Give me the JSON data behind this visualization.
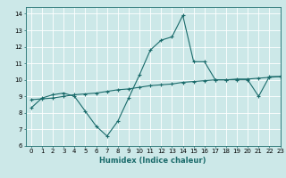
{
  "title": "",
  "xlabel": "Humidex (Indice chaleur)",
  "ylabel": "",
  "bg_color": "#cce8e8",
  "grid_color": "#ffffff",
  "line_color": "#1a6b6b",
  "xlim": [
    -0.5,
    23
  ],
  "ylim": [
    6,
    14.4
  ],
  "yticks": [
    6,
    7,
    8,
    9,
    10,
    11,
    12,
    13,
    14
  ],
  "ytick_labels": [
    "6",
    "7",
    "8",
    "9",
    "10",
    "11",
    "12",
    "13",
    "14"
  ],
  "xticks": [
    0,
    1,
    2,
    3,
    4,
    5,
    6,
    7,
    8,
    9,
    10,
    11,
    12,
    13,
    14,
    15,
    16,
    17,
    18,
    19,
    20,
    21,
    22,
    23
  ],
  "xtick_labels": [
    "0",
    "1",
    "2",
    "3",
    "4",
    "5",
    "6",
    "7",
    "8",
    "9",
    "10",
    "11",
    "12",
    "13",
    "14",
    "15",
    "16",
    "17",
    "18",
    "19",
    "20",
    "21",
    "22",
    "23"
  ],
  "series1_x": [
    0,
    1,
    2,
    3,
    4,
    5,
    6,
    7,
    8,
    9,
    10,
    11,
    12,
    13,
    14,
    15,
    16,
    17,
    18,
    19,
    20,
    21,
    22,
    23
  ],
  "series1_y": [
    8.3,
    8.9,
    9.1,
    9.2,
    9.0,
    8.1,
    7.2,
    6.6,
    7.5,
    8.9,
    10.3,
    11.8,
    12.4,
    12.6,
    13.9,
    11.1,
    11.1,
    10.0,
    10.0,
    10.0,
    10.0,
    9.0,
    10.2,
    10.2
  ],
  "series2_x": [
    0,
    1,
    2,
    3,
    4,
    5,
    6,
    7,
    8,
    9,
    10,
    11,
    12,
    13,
    14,
    15,
    16,
    17,
    18,
    19,
    20,
    21,
    22,
    23
  ],
  "series2_y": [
    8.8,
    8.85,
    8.9,
    9.0,
    9.1,
    9.15,
    9.2,
    9.3,
    9.4,
    9.45,
    9.55,
    9.65,
    9.7,
    9.75,
    9.85,
    9.9,
    9.95,
    10.0,
    10.0,
    10.05,
    10.05,
    10.1,
    10.15,
    10.2
  ],
  "xlabel_fontsize": 6,
  "tick_fontsize": 5,
  "line_width": 0.8,
  "marker_size": 2.5,
  "marker_ew": 0.8
}
